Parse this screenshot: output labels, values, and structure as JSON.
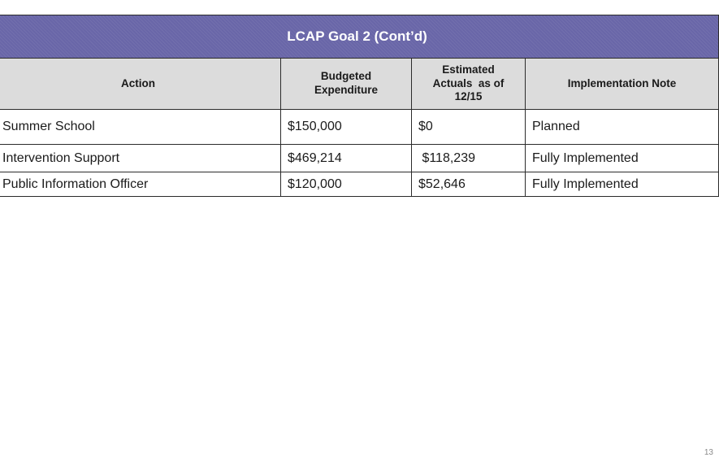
{
  "slide": {
    "title": "LCAP Goal 2 (Cont’d)",
    "page_number": "13"
  },
  "table": {
    "headers": {
      "action": "Action",
      "budgeted": [
        "Budgeted",
        "Expenditure"
      ],
      "estimated": [
        "Estimated",
        "Actuals  as of",
        "12/15"
      ],
      "note": "Implementation Note"
    },
    "rows": [
      {
        "action": "Summer School",
        "budgeted": "$150,000",
        "estimated": "$0",
        "note": "Planned"
      },
      {
        "action": "Intervention Support",
        "budgeted": "$469,214",
        "estimated": " $118,239",
        "note": "Fully Implemented"
      },
      {
        "action": "Public Information Officer",
        "budgeted": "$120,000",
        "estimated": "$52,646",
        "note": "Fully Implemented"
      }
    ]
  },
  "colors": {
    "title_bar": "#6966a8",
    "header_bg": "#dcdcdc",
    "border": "#2b2b2b"
  }
}
